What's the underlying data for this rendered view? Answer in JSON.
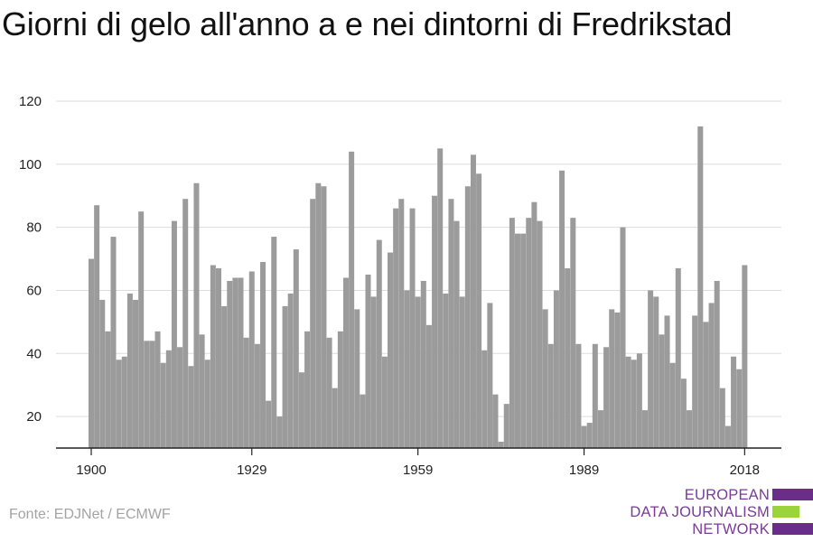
{
  "title": "Giorni di gelo all'anno a e nei dintorni di Fredrikstad",
  "source": "Fonte: EDJNet / ECMWF",
  "logo": {
    "lines": [
      "EUROPEAN",
      "DATA JOURNALISM",
      "NETWORK"
    ],
    "colors": {
      "purple": "#6b2d8a",
      "green": "#9bd33a",
      "text": "#7a3b9a"
    }
  },
  "colors": {
    "bar": "#9b9b9b",
    "grid": "#dddddd",
    "axis": "#222222",
    "tick_text": "#222222"
  },
  "chart_data": {
    "type": "bar",
    "title": "Giorni di gelo all'anno a e nei dintorni di Fredrikstad",
    "xlabel": "",
    "ylabel": "",
    "ylim": [
      10,
      122
    ],
    "yticks": [
      20,
      40,
      60,
      80,
      100,
      120
    ],
    "xticks": [
      1900,
      1929,
      1959,
      1989,
      2018
    ],
    "grid": true,
    "x": [
      1900,
      1901,
      1902,
      1903,
      1904,
      1905,
      1906,
      1907,
      1908,
      1909,
      1910,
      1911,
      1912,
      1913,
      1914,
      1915,
      1916,
      1917,
      1918,
      1919,
      1920,
      1921,
      1922,
      1923,
      1924,
      1925,
      1926,
      1927,
      1928,
      1929,
      1930,
      1931,
      1932,
      1933,
      1934,
      1935,
      1936,
      1937,
      1938,
      1939,
      1940,
      1941,
      1942,
      1943,
      1944,
      1945,
      1946,
      1947,
      1948,
      1949,
      1950,
      1951,
      1952,
      1953,
      1954,
      1955,
      1956,
      1957,
      1958,
      1959,
      1960,
      1961,
      1962,
      1963,
      1964,
      1965,
      1966,
      1967,
      1968,
      1969,
      1970,
      1971,
      1972,
      1973,
      1974,
      1975,
      1976,
      1977,
      1978,
      1979,
      1980,
      1981,
      1982,
      1983,
      1984,
      1985,
      1986,
      1987,
      1988,
      1989,
      1990,
      1991,
      1992,
      1993,
      1994,
      1995,
      1996,
      1997,
      1998,
      1999,
      2000,
      2001,
      2002,
      2003,
      2004,
      2005,
      2006,
      2007,
      2008,
      2009,
      2010,
      2011,
      2012,
      2013,
      2014,
      2015,
      2016,
      2017,
      2018
    ],
    "values": [
      70,
      87,
      57,
      47,
      77,
      38,
      39,
      59,
      57,
      85,
      44,
      44,
      47,
      37,
      41,
      82,
      42,
      89,
      36,
      94,
      46,
      38,
      68,
      67,
      55,
      63,
      64,
      64,
      45,
      66,
      43,
      69,
      25,
      77,
      20,
      55,
      59,
      73,
      34,
      47,
      89,
      94,
      93,
      45,
      29,
      47,
      64,
      104,
      54,
      27,
      65,
      58,
      76,
      39,
      72,
      86,
      89,
      60,
      86,
      58,
      63,
      49,
      90,
      105,
      59,
      89,
      82,
      58,
      93,
      103,
      97,
      41,
      56,
      27,
      12,
      24,
      83,
      78,
      78,
      83,
      88,
      82,
      54,
      43,
      60,
      98,
      67,
      83,
      43,
      17,
      18,
      43,
      22,
      42,
      54,
      53,
      80,
      39,
      38,
      40,
      22,
      60,
      58,
      46,
      52,
      37,
      67,
      32,
      22,
      52,
      112,
      50,
      56,
      63,
      29,
      17,
      39,
      35,
      68
    ]
  }
}
